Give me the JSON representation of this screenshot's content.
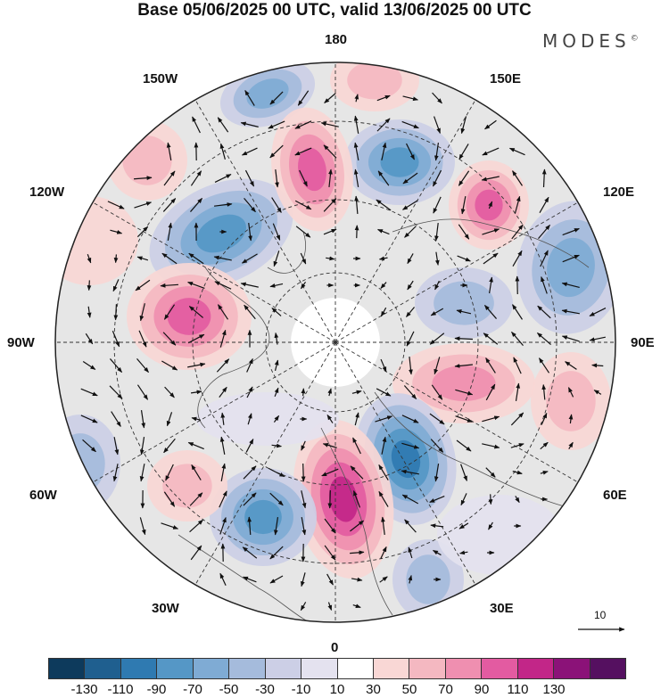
{
  "title": "Base 05/06/2025 00 UTC, valid 13/06/2025 00 UTC",
  "brand": {
    "name": "MODES",
    "mark": "©"
  },
  "longitude_labels": {
    "top": "180",
    "bottom": "0",
    "left": "90W",
    "right": "90E",
    "top_left": "150W",
    "top_right": "150E",
    "upper_left": "120W",
    "upper_right": "120E",
    "lower_left": "60W",
    "lower_right": "60E",
    "bottom_left": "30W",
    "bottom_right": "30E"
  },
  "reference_vector": {
    "label": "10"
  },
  "colorbar": {
    "tick_labels": [
      "-130",
      "-110",
      "-90",
      "-70",
      "-50",
      "-30",
      "-10",
      "10",
      "30",
      "50",
      "70",
      "90",
      "110",
      "130"
    ],
    "colors": [
      "#0d3a5c",
      "#1f5f8f",
      "#2f7ab1",
      "#5597c6",
      "#7fabd4",
      "#a5bbdc",
      "#cccfe6",
      "#e4e2ef",
      "#ffffff",
      "#f9d7d5",
      "#f4b8c1",
      "#ef8fb0",
      "#e35ba1",
      "#c22688",
      "#8b1278",
      "#551060"
    ]
  },
  "map": {
    "projection": "north-polar-stereographic",
    "field": "height anomaly with wind vectors",
    "positive_color": "#e35ba1",
    "negative_color": "#2f7ab1",
    "background_color": "#e6e6e6"
  }
}
